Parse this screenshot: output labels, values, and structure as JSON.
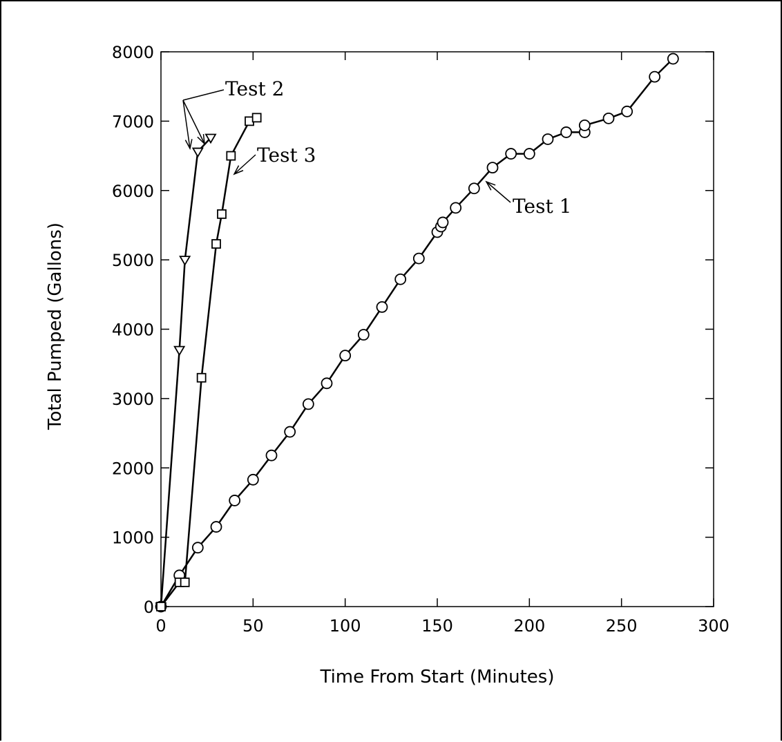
{
  "chart_data": {
    "type": "line",
    "xlabel": "Time From Start (Minutes)",
    "ylabel": "Total Pumped (Gallons)",
    "xlim": [
      0,
      300
    ],
    "ylim": [
      0,
      8000
    ],
    "xticks": [
      0,
      50,
      100,
      150,
      200,
      250,
      300
    ],
    "yticks": [
      0,
      1000,
      2000,
      3000,
      4000,
      5000,
      6000,
      7000,
      8000
    ],
    "grid": false,
    "series": [
      {
        "marker": "circle",
        "x": [
          0,
          10,
          20,
          30,
          40,
          50,
          60,
          70,
          80,
          90,
          100,
          110,
          120,
          130,
          140,
          150,
          152,
          153,
          160,
          170,
          180,
          190,
          200,
          210,
          220,
          230,
          230,
          243,
          253,
          268,
          278
        ],
        "y": [
          0,
          450,
          850,
          1150,
          1530,
          1830,
          2180,
          2520,
          2920,
          3220,
          3620,
          3920,
          4320,
          4720,
          5020,
          5400,
          5480,
          5540,
          5750,
          6030,
          6330,
          6530,
          6530,
          6740,
          6840,
          6840,
          6940,
          7040,
          7140,
          7640,
          7900
        ]
      },
      {
        "marker": "triangle-down",
        "x": [
          0,
          10,
          13,
          20,
          27
        ],
        "y": [
          0,
          3700,
          5000,
          6560,
          6760
        ]
      },
      {
        "marker": "square",
        "x": [
          0,
          10,
          13,
          22,
          30,
          33,
          38,
          48,
          52
        ],
        "y": [
          0,
          350,
          350,
          3300,
          5230,
          5660,
          6500,
          7000,
          7050
        ]
      }
    ],
    "annotations": [
      {
        "text": "Test 1",
        "series": 0
      },
      {
        "text": "Test 2",
        "series": 1
      },
      {
        "text": "Test 3",
        "series": 2
      }
    ]
  }
}
